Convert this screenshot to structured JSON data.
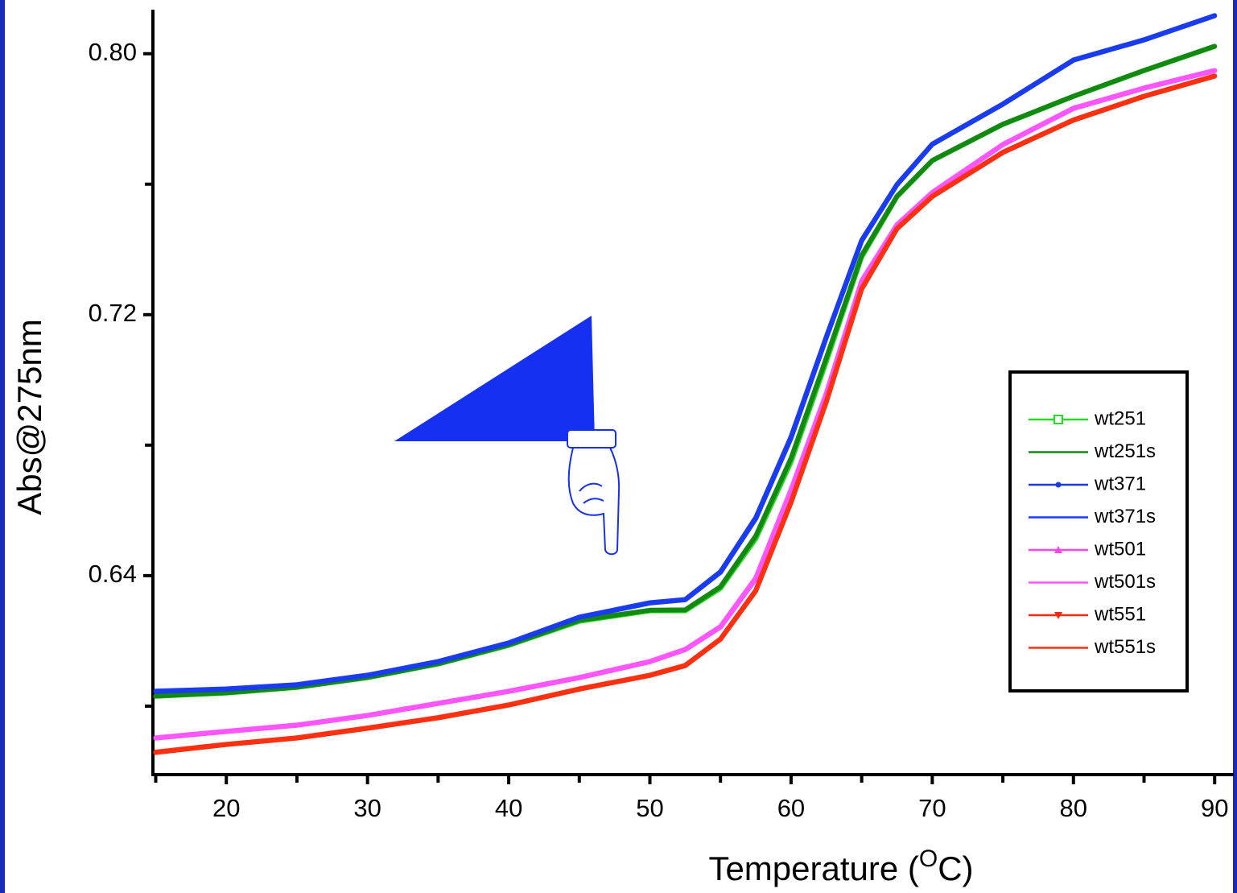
{
  "chart_data": {
    "type": "line",
    "ylabel": "Abs@275nm",
    "xlabel": [
      "Temperature (",
      "O",
      "C)"
    ],
    "xlim": [
      14.8,
      90.9
    ],
    "ylim": [
      0.579,
      0.8135
    ],
    "xticks": [
      20,
      30,
      40,
      50,
      60,
      70,
      80,
      90
    ],
    "xminorticks": [
      15,
      25,
      35,
      45,
      55,
      65,
      75,
      85
    ],
    "yticks": [
      {
        "value": 0.64,
        "label": "0.64"
      },
      {
        "value": 0.72,
        "label": "0.72"
      },
      {
        "value": 0.8,
        "label": "0.80"
      }
    ],
    "yminorticks": [
      0.6,
      0.68,
      0.76
    ],
    "x": [
      15,
      20,
      25,
      30,
      35,
      40,
      45,
      50,
      52.5,
      55,
      57.5,
      60,
      62.5,
      65,
      67.5,
      70,
      75,
      80,
      85,
      90
    ],
    "series": [
      {
        "name": "wt251",
        "color": "#22dd22",
        "marker": "square",
        "values": [
          0.603,
          0.604,
          0.6057,
          0.6087,
          0.6129,
          0.6186,
          0.626,
          0.6292,
          0.6292,
          0.6361,
          0.6513,
          0.6748,
          0.7056,
          0.7376,
          0.7561,
          0.7672,
          0.7783,
          0.7869,
          0.7948,
          0.8022
        ]
      },
      {
        "name": "wt251s",
        "color": "#128a12",
        "values": [
          0.6031,
          0.6041,
          0.6058,
          0.6088,
          0.613,
          0.6188,
          0.6263,
          0.6294,
          0.6295,
          0.6366,
          0.6522,
          0.676,
          0.7068,
          0.7382,
          0.7563,
          0.7673,
          0.7784,
          0.787,
          0.7949,
          0.8023
        ]
      },
      {
        "name": "wt371",
        "color": "#1a3be0",
        "marker": "circle",
        "values": [
          0.6045,
          0.6052,
          0.6065,
          0.6094,
          0.6136,
          0.6193,
          0.6272,
          0.6316,
          0.6326,
          0.641,
          0.6575,
          0.6822,
          0.713,
          0.7426,
          0.7598,
          0.7722,
          0.7845,
          0.798,
          0.8042,
          0.8116
        ]
      },
      {
        "name": "wt371s",
        "color": "#1a3cf0",
        "values": [
          0.6046,
          0.6053,
          0.6066,
          0.6095,
          0.6137,
          0.6194,
          0.6273,
          0.6317,
          0.6327,
          0.6412,
          0.6578,
          0.6826,
          0.7133,
          0.7428,
          0.7599,
          0.7723,
          0.7846,
          0.7981,
          0.8043,
          0.8117
        ]
      },
      {
        "name": "wt501",
        "color": "#ff44ee",
        "marker": "triangle",
        "values": [
          0.5902,
          0.5922,
          0.5941,
          0.5971,
          0.6008,
          0.6045,
          0.6087,
          0.6136,
          0.6173,
          0.6242,
          0.639,
          0.6661,
          0.6957,
          0.7302,
          0.7475,
          0.7574,
          0.7721,
          0.7832,
          0.7894,
          0.7948
        ]
      },
      {
        "name": "wt501s",
        "color": "#ff55ff",
        "values": [
          0.5903,
          0.5923,
          0.5942,
          0.5972,
          0.6009,
          0.6046,
          0.6088,
          0.6137,
          0.6174,
          0.6244,
          0.6393,
          0.6664,
          0.696,
          0.7304,
          0.7476,
          0.7575,
          0.7722,
          0.7833,
          0.7895,
          0.7949
        ]
      },
      {
        "name": "wt551",
        "color": "#ee2a10",
        "marker": "triangle-down",
        "values": [
          0.5858,
          0.5882,
          0.5902,
          0.5932,
          0.5964,
          0.6003,
          0.6052,
          0.6094,
          0.6124,
          0.6205,
          0.6353,
          0.6624,
          0.6933,
          0.7278,
          0.7463,
          0.7562,
          0.7697,
          0.7796,
          0.7869,
          0.7931
        ]
      },
      {
        "name": "wt551s",
        "color": "#ff3010",
        "values": [
          0.5859,
          0.5883,
          0.5903,
          0.5933,
          0.5965,
          0.6004,
          0.6053,
          0.6095,
          0.6125,
          0.6206,
          0.6355,
          0.6626,
          0.6935,
          0.728,
          0.7464,
          0.7563,
          0.7698,
          0.7797,
          0.787,
          0.7932
        ]
      }
    ]
  }
}
